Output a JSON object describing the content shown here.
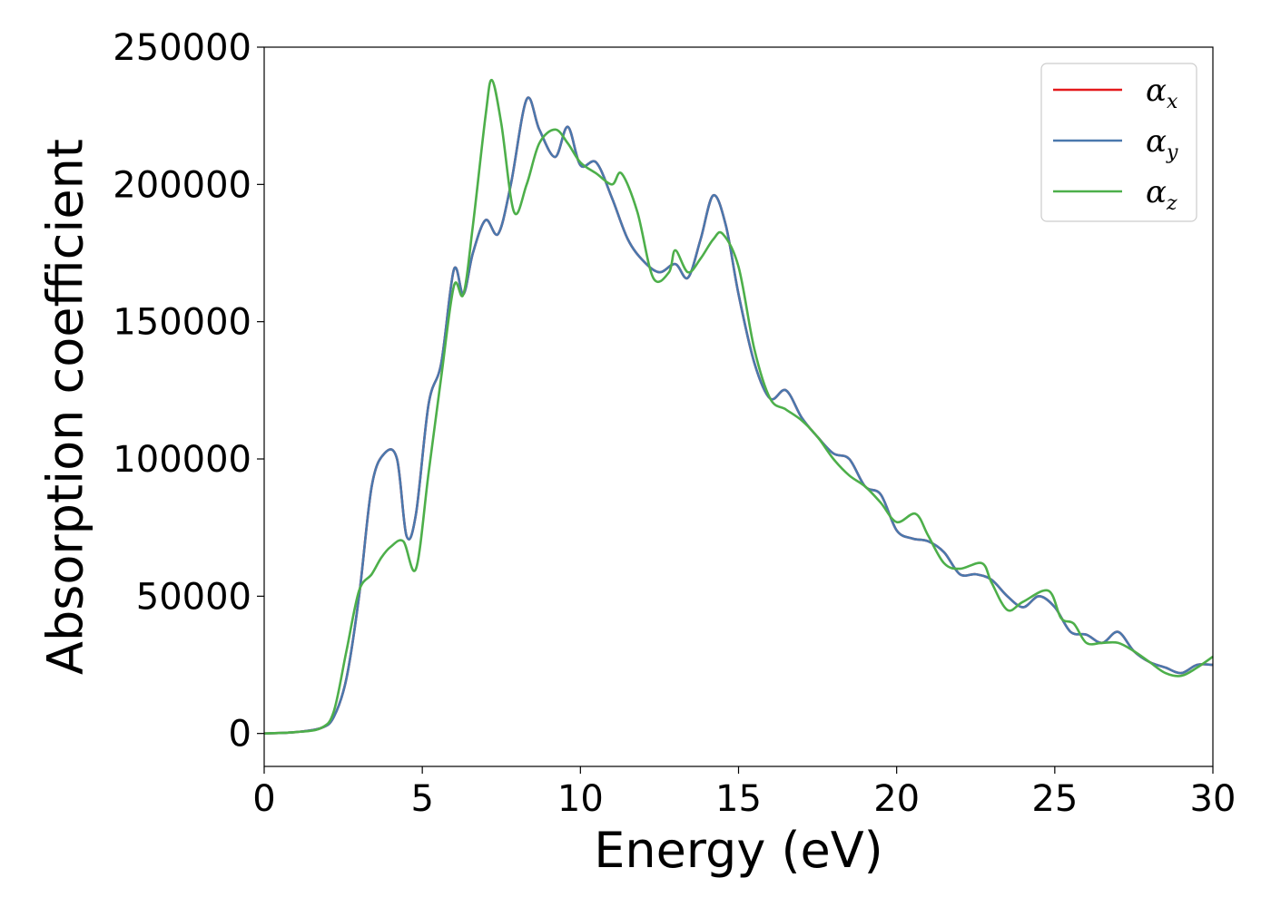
{
  "chart_data": {
    "type": "line",
    "title": "",
    "xlabel": "Energy (eV)",
    "ylabel": "Absorption coefficient",
    "xlim": [
      0,
      30
    ],
    "ylim": [
      -12000,
      250000
    ],
    "xticks": [
      0,
      5,
      10,
      15,
      20,
      25,
      30
    ],
    "xtick_labels": [
      "0",
      "5",
      "10",
      "15",
      "20",
      "25",
      "30"
    ],
    "yticks": [
      0,
      50000,
      100000,
      150000,
      200000,
      250000
    ],
    "ytick_labels": [
      "0",
      "50000",
      "100000",
      "150000",
      "200000",
      "250000"
    ],
    "grid": false,
    "legend_position": "top-right",
    "series": [
      {
        "name": "α_x",
        "label_main": "α",
        "label_sub": "x",
        "color": "#e41a1c",
        "x": [
          0,
          1,
          1.8,
          2.2,
          2.6,
          3.0,
          3.4,
          3.8,
          4.2,
          4.5,
          4.8,
          5.2,
          5.6,
          6.0,
          6.3,
          6.6,
          7.0,
          7.4,
          7.8,
          8.3,
          8.7,
          9.2,
          9.6,
          10.0,
          10.5,
          11.0,
          11.5,
          12.0,
          12.5,
          13.0,
          13.4,
          13.8,
          14.2,
          14.6,
          15.0,
          15.5,
          16.0,
          16.5,
          17.0,
          17.5,
          18.0,
          18.5,
          19.0,
          19.5,
          20.0,
          20.5,
          21.0,
          21.5,
          22.0,
          22.5,
          23.0,
          23.5,
          24.0,
          24.5,
          25.0,
          25.5,
          26.0,
          26.5,
          27.0,
          27.5,
          28.0,
          28.5,
          29.0,
          29.5,
          30.0
        ],
        "values": [
          0,
          500,
          2000,
          6000,
          20000,
          50000,
          90000,
          102000,
          100000,
          72000,
          80000,
          120000,
          135000,
          169000,
          160000,
          175000,
          187000,
          182000,
          200000,
          231000,
          220000,
          210000,
          221000,
          207000,
          208000,
          195000,
          180000,
          172000,
          168000,
          171000,
          166000,
          180000,
          196000,
          185000,
          160000,
          135000,
          122000,
          125000,
          115000,
          108000,
          102000,
          100000,
          90000,
          87000,
          74000,
          71000,
          70000,
          66000,
          58000,
          58000,
          56000,
          50000,
          46000,
          50000,
          46000,
          37000,
          36000,
          33000,
          37000,
          30000,
          26000,
          24000,
          22000,
          25000,
          25000
        ]
      },
      {
        "name": "α_y",
        "label_main": "α",
        "label_sub": "y",
        "color": "#4a78ad",
        "x": [
          0,
          1,
          1.8,
          2.2,
          2.6,
          3.0,
          3.4,
          3.8,
          4.2,
          4.5,
          4.8,
          5.2,
          5.6,
          6.0,
          6.3,
          6.6,
          7.0,
          7.4,
          7.8,
          8.3,
          8.7,
          9.2,
          9.6,
          10.0,
          10.5,
          11.0,
          11.5,
          12.0,
          12.5,
          13.0,
          13.4,
          13.8,
          14.2,
          14.6,
          15.0,
          15.5,
          16.0,
          16.5,
          17.0,
          17.5,
          18.0,
          18.5,
          19.0,
          19.5,
          20.0,
          20.5,
          21.0,
          21.5,
          22.0,
          22.5,
          23.0,
          23.5,
          24.0,
          24.5,
          25.0,
          25.5,
          26.0,
          26.5,
          27.0,
          27.5,
          28.0,
          28.5,
          29.0,
          29.5,
          30.0
        ],
        "values": [
          0,
          500,
          2000,
          6000,
          20000,
          50000,
          90000,
          102000,
          100000,
          72000,
          80000,
          120000,
          135000,
          169000,
          160000,
          175000,
          187000,
          182000,
          200000,
          231000,
          220000,
          210000,
          221000,
          207000,
          208000,
          195000,
          180000,
          172000,
          168000,
          171000,
          166000,
          180000,
          196000,
          185000,
          160000,
          135000,
          122000,
          125000,
          115000,
          108000,
          102000,
          100000,
          90000,
          87000,
          74000,
          71000,
          70000,
          66000,
          58000,
          58000,
          56000,
          50000,
          46000,
          50000,
          46000,
          37000,
          36000,
          33000,
          37000,
          30000,
          26000,
          24000,
          22000,
          25000,
          25000
        ]
      },
      {
        "name": "α_z",
        "label_main": "α",
        "label_sub": "z",
        "color": "#4daf4a",
        "x": [
          0,
          1,
          1.8,
          2.2,
          2.6,
          3.0,
          3.4,
          3.7,
          4.0,
          4.4,
          4.8,
          5.2,
          5.6,
          6.0,
          6.3,
          6.6,
          7.0,
          7.2,
          7.5,
          7.9,
          8.3,
          8.7,
          9.2,
          9.6,
          10.0,
          10.5,
          11.0,
          11.3,
          11.8,
          12.3,
          12.8,
          13.0,
          13.4,
          13.8,
          14.2,
          14.5,
          15.0,
          15.5,
          16.0,
          16.5,
          17.0,
          17.5,
          18.0,
          18.5,
          19.0,
          19.5,
          20.0,
          20.6,
          21.0,
          21.5,
          22.0,
          22.7,
          23.0,
          23.5,
          24.0,
          24.8,
          25.2,
          25.6,
          26.0,
          26.5,
          27.0,
          27.5,
          28.0,
          28.5,
          29.0,
          29.5,
          30.0
        ],
        "values": [
          0,
          500,
          2000,
          8000,
          30000,
          52000,
          58000,
          64000,
          68000,
          70000,
          60000,
          95000,
          130000,
          163000,
          160000,
          185000,
          225000,
          238000,
          222000,
          190000,
          200000,
          215000,
          220000,
          215000,
          208000,
          204000,
          200000,
          204000,
          190000,
          166000,
          168000,
          176000,
          168000,
          173000,
          180000,
          182000,
          170000,
          140000,
          122000,
          118000,
          114000,
          108000,
          100000,
          94000,
          90000,
          84000,
          77000,
          80000,
          72000,
          62000,
          60000,
          62000,
          55000,
          45000,
          48000,
          52000,
          42000,
          40000,
          33000,
          33000,
          33000,
          30000,
          26000,
          22000,
          21000,
          24000,
          28000
        ]
      }
    ]
  }
}
